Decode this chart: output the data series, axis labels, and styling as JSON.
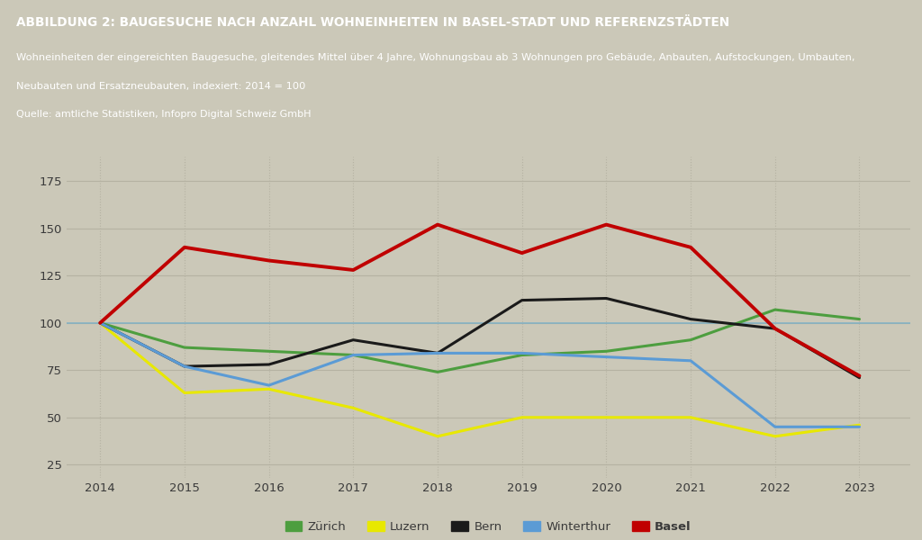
{
  "title": "ABBILDUNG 2: BAUGESUCHE NACH ANZAHL WOHNEINHEITEN IN BASEL-STADT UND REFERENZSTÄDTEN",
  "subtitle_line1": "Wohneinheiten der eingereichten Baugesuche, gleitendes Mittel über 4 Jahre, Wohnungsbau ab 3 Wohnungen pro Gebäude, Anbauten, Aufstockungen, Umbauten,",
  "subtitle_line2": "Neubauten und Ersatzneubauten, indexiert: 2014 = 100",
  "source": "Quelle: amtliche Statistiken, Infopro Digital Schweiz GmbH",
  "years": [
    2014,
    2015,
    2016,
    2017,
    2018,
    2019,
    2020,
    2021,
    2022,
    2023
  ],
  "series": {
    "Zürich": [
      100,
      87,
      85,
      83,
      74,
      83,
      85,
      91,
      107,
      102
    ],
    "Luzern": [
      100,
      63,
      65,
      55,
      40,
      50,
      50,
      50,
      40,
      46
    ],
    "Bern": [
      100,
      77,
      78,
      91,
      84,
      112,
      113,
      102,
      97,
      71
    ],
    "Winterthur": [
      100,
      77,
      67,
      83,
      84,
      84,
      82,
      80,
      45,
      45
    ],
    "Basel": [
      100,
      140,
      133,
      128,
      152,
      137,
      152,
      140,
      97,
      72
    ]
  },
  "colors": {
    "Zürich": "#4d9e3f",
    "Luzern": "#e8e800",
    "Bern": "#1a1a1a",
    "Winterthur": "#5b9bd5",
    "Basel": "#c00000"
  },
  "linewidths": {
    "Zürich": 2.2,
    "Luzern": 2.2,
    "Bern": 2.2,
    "Winterthur": 2.2,
    "Basel": 2.8
  },
  "background_color": "#cbc8b8",
  "header_bg_color": "#a3a08f",
  "plot_bg_color": "#cbc8b8",
  "reference_line_y": 100,
  "reference_line_color": "#7ab0c8",
  "ylim": [
    18,
    188
  ],
  "yticks": [
    25,
    50,
    75,
    100,
    125,
    150,
    175
  ],
  "xlim": [
    2013.6,
    2023.6
  ],
  "legend_order": [
    "Zürich",
    "Luzern",
    "Bern",
    "Winterthur",
    "Basel"
  ]
}
